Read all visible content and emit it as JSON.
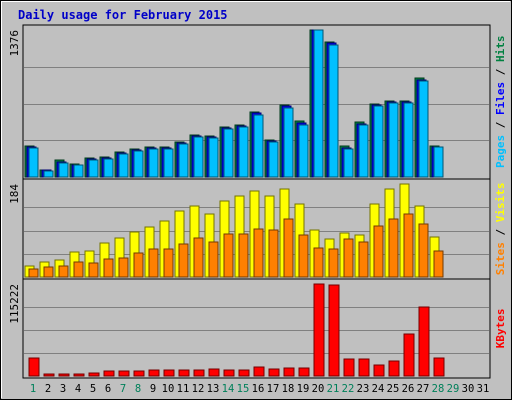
{
  "chart_data": {
    "type": "bar",
    "title": "Daily usage for February 2015",
    "days": [
      "1",
      "2",
      "3",
      "4",
      "5",
      "6",
      "7",
      "8",
      "9",
      "10",
      "11",
      "12",
      "13",
      "14",
      "15",
      "16",
      "17",
      "18",
      "19",
      "20",
      "21",
      "22",
      "23",
      "24",
      "25",
      "26",
      "27",
      "28",
      "29",
      "30",
      "31"
    ],
    "weekend_days": [
      "1",
      "7",
      "8",
      "14",
      "15",
      "21",
      "22",
      "28",
      "29"
    ],
    "panels": [
      {
        "label": "Pages / Files / Hits",
        "label_parts": [
          {
            "text": "Pages",
            "color": "#00c0ff"
          },
          {
            "text": " / ",
            "color": "#000000"
          },
          {
            "text": "Files",
            "color": "#0000ff"
          },
          {
            "text": " / ",
            "color": "#000000"
          },
          {
            "text": "Hits",
            "color": "#008040"
          }
        ],
        "ymax_label": "1376",
        "ymax": 1376,
        "series": [
          {
            "name": "Hits",
            "color": "#008040",
            "values": [
              290,
              70,
              155,
              120,
              180,
              185,
              235,
              265,
              280,
              280,
              330,
              395,
              385,
              470,
              490,
              610,
              345,
              670,
              520,
              1376,
              1260,
              290,
              515,
              680,
              710,
              710,
              927,
              290,
              0,
              0,
              0
            ]
          },
          {
            "name": "Files",
            "color": "#0000ff",
            "values": [
              280,
              65,
              140,
              115,
              170,
              175,
              225,
              255,
              275,
              270,
              320,
              385,
              375,
              460,
              480,
              595,
              335,
              660,
              505,
              1376,
              1250,
              275,
              500,
              670,
              700,
              700,
              910,
              285,
              0,
              0,
              0
            ]
          },
          {
            "name": "Pages",
            "color": "#00c0ff",
            "values": [
              270,
              60,
              130,
              110,
              160,
              165,
              215,
              245,
              265,
              260,
              310,
              375,
              365,
              450,
              470,
              580,
              325,
              650,
              490,
              1376,
              1240,
              260,
              490,
              660,
              690,
              690,
              895,
              280,
              0,
              0,
              0
            ]
          }
        ]
      },
      {
        "label": "Sites / Visits",
        "label_parts": [
          {
            "text": "Sites",
            "color": "#ff8000"
          },
          {
            "text": " / ",
            "color": "#000000"
          },
          {
            "text": "Visits",
            "color": "#ffff00"
          }
        ],
        "ymax_label": "184",
        "ymax": 184,
        "series": [
          {
            "name": "Visits",
            "color": "#ffff00",
            "values": [
              22,
              30,
              33,
              50,
              52,
              68,
              77,
              90,
              98,
              110,
              130,
              140,
              125,
              150,
              160,
              170,
              160,
              175,
              145,
              92,
              75,
              87,
              83,
              145,
              175,
              184,
              140,
              80,
              0,
              0,
              0
            ]
          },
          {
            "name": "Sites",
            "color": "#ff8000",
            "values": [
              15,
              19,
              21,
              29,
              28,
              36,
              38,
              47,
              56,
              55,
              66,
              78,
              70,
              86,
              85,
              95,
              93,
              115,
              83,
              58,
              55,
              76,
              69,
              100,
              115,
              125,
              105,
              51,
              0,
              0,
              0
            ]
          }
        ]
      },
      {
        "label": "KBytes",
        "label_parts": [
          {
            "text": "KBytes",
            "color": "#ff0000"
          }
        ],
        "ymax_label": "115222",
        "ymax": 115222,
        "series": [
          {
            "name": "KBytes",
            "color": "#ff0000",
            "values": [
              22000,
              1500,
              1500,
              1800,
              3200,
              6500,
              6500,
              6500,
              7500,
              7500,
              7500,
              7500,
              8500,
              7500,
              7500,
              11500,
              8500,
              10500,
              10000,
              115222,
              114000,
              21000,
              21000,
              14000,
              19000,
              52000,
              86000,
              22000,
              0,
              0,
              0
            ]
          }
        ]
      }
    ]
  }
}
